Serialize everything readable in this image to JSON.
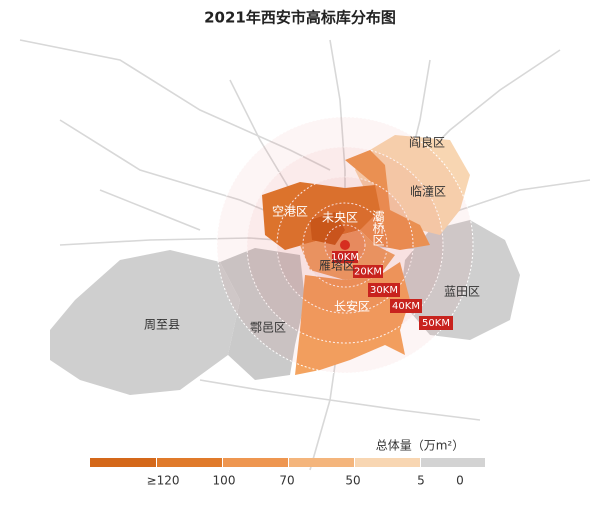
{
  "header": {
    "title": "2021年西安市高标库分布图"
  },
  "districts": [
    "阎良区",
    "临潼区",
    "空港区",
    "未央区",
    "灞桥区",
    "雁塔区",
    "长安区",
    "蓝田区",
    "周至县",
    "鄠邑区"
  ],
  "rings": [
    "10KM",
    "20KM",
    "30KM",
    "40KM",
    "50KM"
  ],
  "legend": {
    "title": "总体量（万m²）",
    "labels": [
      "≥120",
      "100",
      "70",
      "50",
      "5",
      "0"
    ]
  }
}
